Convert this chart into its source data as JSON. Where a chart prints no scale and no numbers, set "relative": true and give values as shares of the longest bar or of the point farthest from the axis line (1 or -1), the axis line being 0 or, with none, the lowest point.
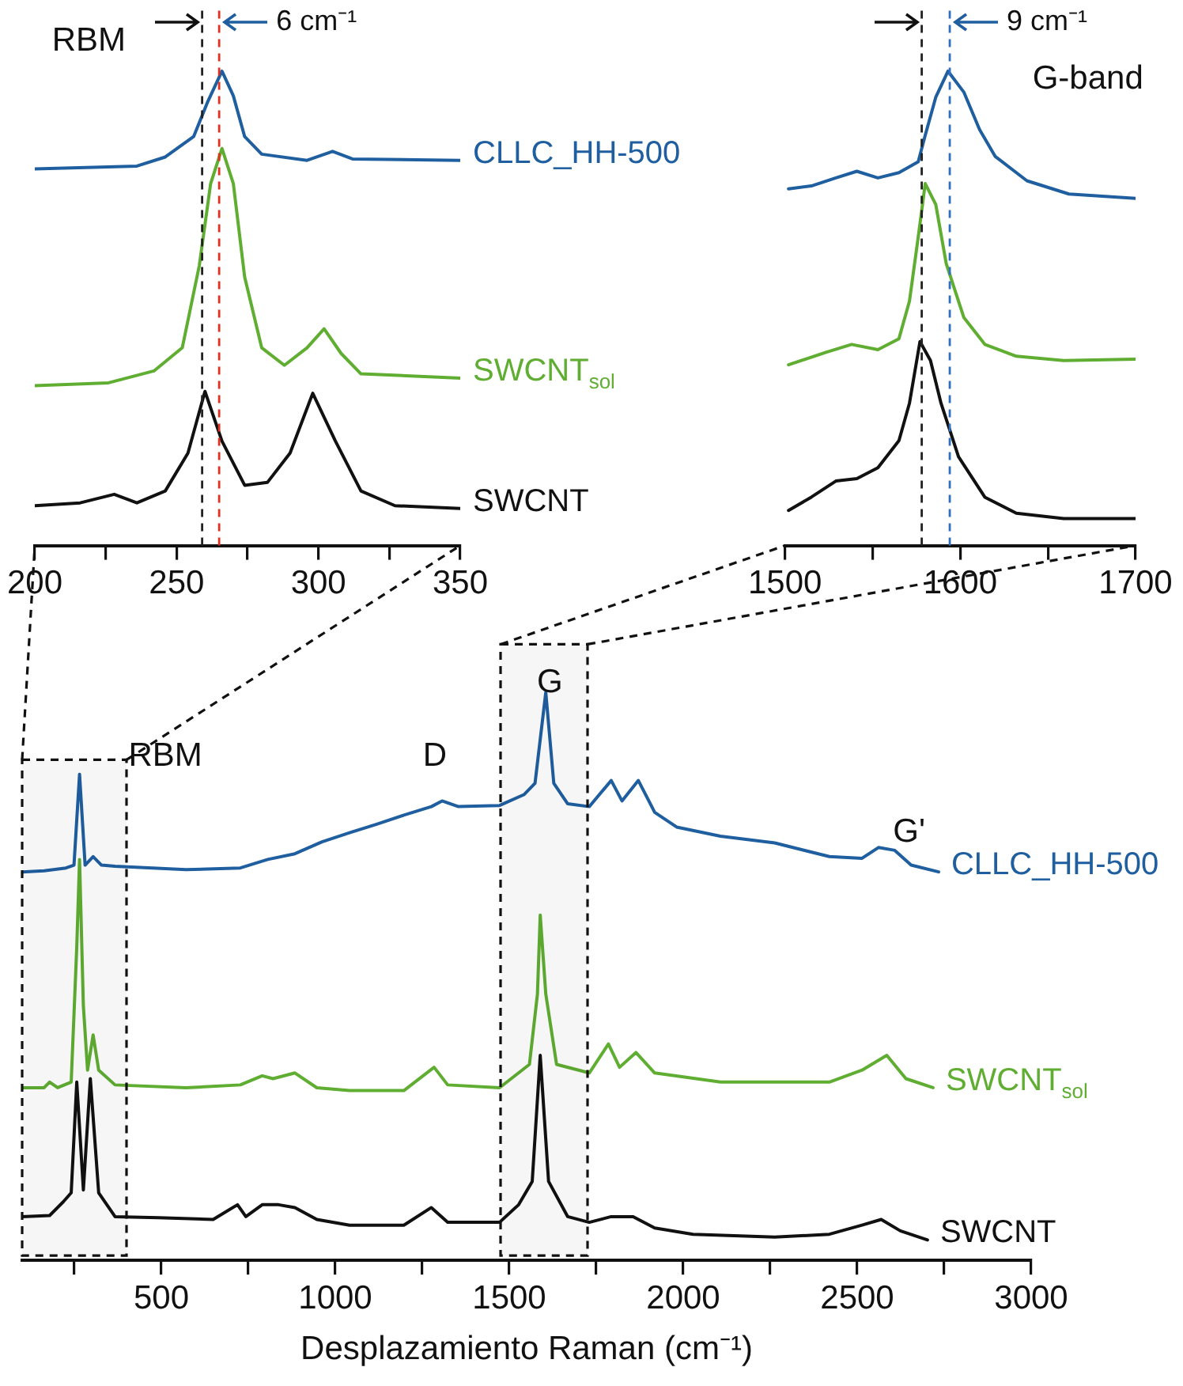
{
  "chart_data": [
    {
      "type": "line",
      "relative": true,
      "marker": "none",
      "line_style": "solid",
      "xlim": [
        200,
        350
      ],
      "xticks": [
        200,
        {
          "value": 225,
          "label": null
        },
        250,
        {
          "value": 275,
          "label": null
        },
        300,
        {
          "value": 325,
          "label": null
        },
        350
      ],
      "annotations": [
        "RBM"
      ],
      "ref_lines": [
        {
          "axis": "x",
          "value": 259,
          "color": "#222222",
          "line_style": "dashed"
        },
        {
          "axis": "x",
          "value": 265,
          "color": "#e0301e",
          "line_style": "dashed",
          "label": "6 cm⁻¹"
        }
      ],
      "series": [
        {
          "name": "CLLC_HH-500",
          "color": "#1f5fa0",
          "x": [
            200,
            236,
            246,
            256,
            261,
            266,
            270,
            274,
            280,
            296,
            305,
            312,
            350
          ],
          "values": [
            0.794,
            0.8,
            0.819,
            0.862,
            0.936,
            1.0,
            0.948,
            0.862,
            0.825,
            0.812,
            0.831,
            0.815,
            0.812
          ]
        },
        {
          "name": "SWCNT$_{sol}$",
          "color": "#5fae32",
          "x": [
            200,
            226,
            242,
            252,
            258,
            262,
            266,
            270,
            274,
            280,
            288,
            296,
            302,
            308,
            315,
            350
          ],
          "values": [
            0.337,
            0.343,
            0.368,
            0.417,
            0.59,
            0.763,
            0.837,
            0.763,
            0.566,
            0.417,
            0.38,
            0.417,
            0.457,
            0.405,
            0.362,
            0.353
          ]
        },
        {
          "name": "SWCNT",
          "color": "#111111",
          "x": [
            200,
            216,
            228,
            236,
            246,
            254,
            260,
            266,
            274,
            282,
            290,
            298,
            306,
            315,
            327,
            350
          ],
          "values": [
            0.084,
            0.09,
            0.108,
            0.09,
            0.115,
            0.195,
            0.325,
            0.22,
            0.127,
            0.133,
            0.195,
            0.321,
            0.22,
            0.115,
            0.084,
            0.078
          ]
        }
      ]
    },
    {
      "type": "line",
      "relative": true,
      "marker": "none",
      "line_style": "solid",
      "xlim": [
        1500,
        1700
      ],
      "xticks": [
        1500,
        {
          "value": 1550,
          "label": null
        },
        1600,
        {
          "value": 1650,
          "label": null
        },
        1700
      ],
      "annotations": [
        "G-band"
      ],
      "ref_lines": [
        {
          "axis": "x",
          "value": 1578,
          "color": "#222222",
          "line_style": "dashed"
        },
        {
          "axis": "x",
          "value": 1594,
          "color": "#3070c0",
          "line_style": "dashed",
          "label": "9 cm⁻¹"
        }
      ],
      "series": [
        {
          "color": "#1f5fa0",
          "x": [
            1502,
            1515,
            1529,
            1541,
            1553,
            1565,
            1576,
            1580,
            1586,
            1593,
            1602,
            1611,
            1620,
            1638,
            1662,
            1700
          ],
          "values": [
            0.752,
            0.758,
            0.775,
            0.789,
            0.775,
            0.786,
            0.809,
            0.865,
            0.945,
            1.0,
            0.956,
            0.877,
            0.82,
            0.769,
            0.741,
            0.732
          ]
        },
        {
          "color": "#5fae32",
          "x": [
            1502,
            1523,
            1538,
            1553,
            1565,
            1571,
            1576,
            1580,
            1586,
            1592,
            1602,
            1614,
            1632,
            1659,
            1700
          ],
          "values": [
            0.381,
            0.407,
            0.424,
            0.413,
            0.436,
            0.515,
            0.65,
            0.763,
            0.719,
            0.594,
            0.481,
            0.424,
            0.399,
            0.39,
            0.393
          ]
        },
        {
          "color": "#111111",
          "x": [
            1502,
            1515,
            1529,
            1541,
            1553,
            1565,
            1571,
            1577,
            1583,
            1589,
            1599,
            1614,
            1632,
            1659,
            1700
          ],
          "values": [
            0.074,
            0.102,
            0.136,
            0.141,
            0.164,
            0.221,
            0.3,
            0.43,
            0.39,
            0.3,
            0.187,
            0.102,
            0.068,
            0.057,
            0.057
          ]
        }
      ]
    },
    {
      "type": "line",
      "relative": true,
      "marker": "none",
      "line_style": "solid",
      "xlabel": "Desplazamiento Raman (cm⁻¹)",
      "xlim": [
        100,
        3000
      ],
      "xticks": [
        {
          "value": 250,
          "label": null
        },
        500,
        {
          "value": 750,
          "label": null
        },
        1000,
        {
          "value": 1250,
          "label": null
        },
        1500,
        {
          "value": 1750,
          "label": null
        },
        2000,
        {
          "value": 2250,
          "label": null
        },
        2500,
        {
          "value": 2750,
          "label": null
        },
        3000
      ],
      "annotations": [
        "RBM",
        "D",
        "G",
        "G'"
      ],
      "bands": [
        {
          "axis": "x",
          "from": 100,
          "to": 400
        },
        {
          "axis": "x",
          "from": 1475,
          "to": 1725
        }
      ],
      "series": [
        {
          "name": "CLLC_HH-500",
          "color": "#1f5fa0",
          "x": [
            100,
            163,
            226,
            249,
            265,
            281,
            304,
            328,
            367,
            571,
            727,
            806,
            884,
            962,
            1041,
            1119,
            1197,
            1276,
            1307,
            1354,
            1472,
            1542,
            1574,
            1605,
            1628,
            1668,
            1730,
            1793,
            1824,
            1871,
            1918,
            1981,
            2107,
            2263,
            2420,
            2514,
            2561,
            2608,
            2655,
            2734
          ],
          "values": [
            0.684,
            0.686,
            0.691,
            0.696,
            0.856,
            0.696,
            0.711,
            0.696,
            0.694,
            0.688,
            0.691,
            0.706,
            0.716,
            0.737,
            0.753,
            0.768,
            0.784,
            0.799,
            0.809,
            0.799,
            0.801,
            0.82,
            0.84,
            1.0,
            0.84,
            0.804,
            0.799,
            0.845,
            0.809,
            0.845,
            0.789,
            0.763,
            0.747,
            0.735,
            0.711,
            0.708,
            0.727,
            0.722,
            0.696,
            0.684
          ]
        },
        {
          "name": "SWCNT$_{sol}$",
          "color": "#5fae32",
          "x": [
            100,
            163,
            179,
            202,
            241,
            257,
            265,
            276,
            288,
            304,
            320,
            367,
            571,
            727,
            790,
            821,
            884,
            947,
            1041,
            1197,
            1284,
            1323,
            1472,
            1558,
            1581,
            1589,
            1605,
            1636,
            1730,
            1785,
            1817,
            1864,
            1918,
            2107,
            2420,
            2514,
            2585,
            2640,
            2718
          ],
          "values": [
            0.304,
            0.304,
            0.314,
            0.304,
            0.314,
            0.552,
            0.706,
            0.448,
            0.335,
            0.397,
            0.335,
            0.309,
            0.304,
            0.309,
            0.325,
            0.32,
            0.33,
            0.304,
            0.299,
            0.299,
            0.34,
            0.309,
            0.304,
            0.345,
            0.469,
            0.608,
            0.469,
            0.345,
            0.33,
            0.381,
            0.34,
            0.366,
            0.33,
            0.314,
            0.314,
            0.335,
            0.361,
            0.32,
            0.304
          ]
        },
        {
          "name": "SWCNT",
          "color": "#111111",
          "x": [
            100,
            179,
            218,
            241,
            257,
            276,
            296,
            320,
            367,
            492,
            649,
            719,
            743,
            790,
            837,
            884,
            947,
            1041,
            1197,
            1276,
            1323,
            1472,
            1527,
            1566,
            1589,
            1613,
            1668,
            1730,
            1793,
            1856,
            1918,
            2028,
            2263,
            2420,
            2514,
            2569,
            2624,
            2702
          ],
          "values": [
            0.077,
            0.079,
            0.103,
            0.119,
            0.314,
            0.124,
            0.32,
            0.119,
            0.077,
            0.075,
            0.072,
            0.098,
            0.077,
            0.098,
            0.098,
            0.093,
            0.072,
            0.062,
            0.062,
            0.093,
            0.067,
            0.067,
            0.098,
            0.139,
            0.361,
            0.139,
            0.077,
            0.067,
            0.077,
            0.077,
            0.057,
            0.046,
            0.041,
            0.046,
            0.062,
            0.072,
            0.052,
            0.036
          ]
        }
      ]
    }
  ]
}
